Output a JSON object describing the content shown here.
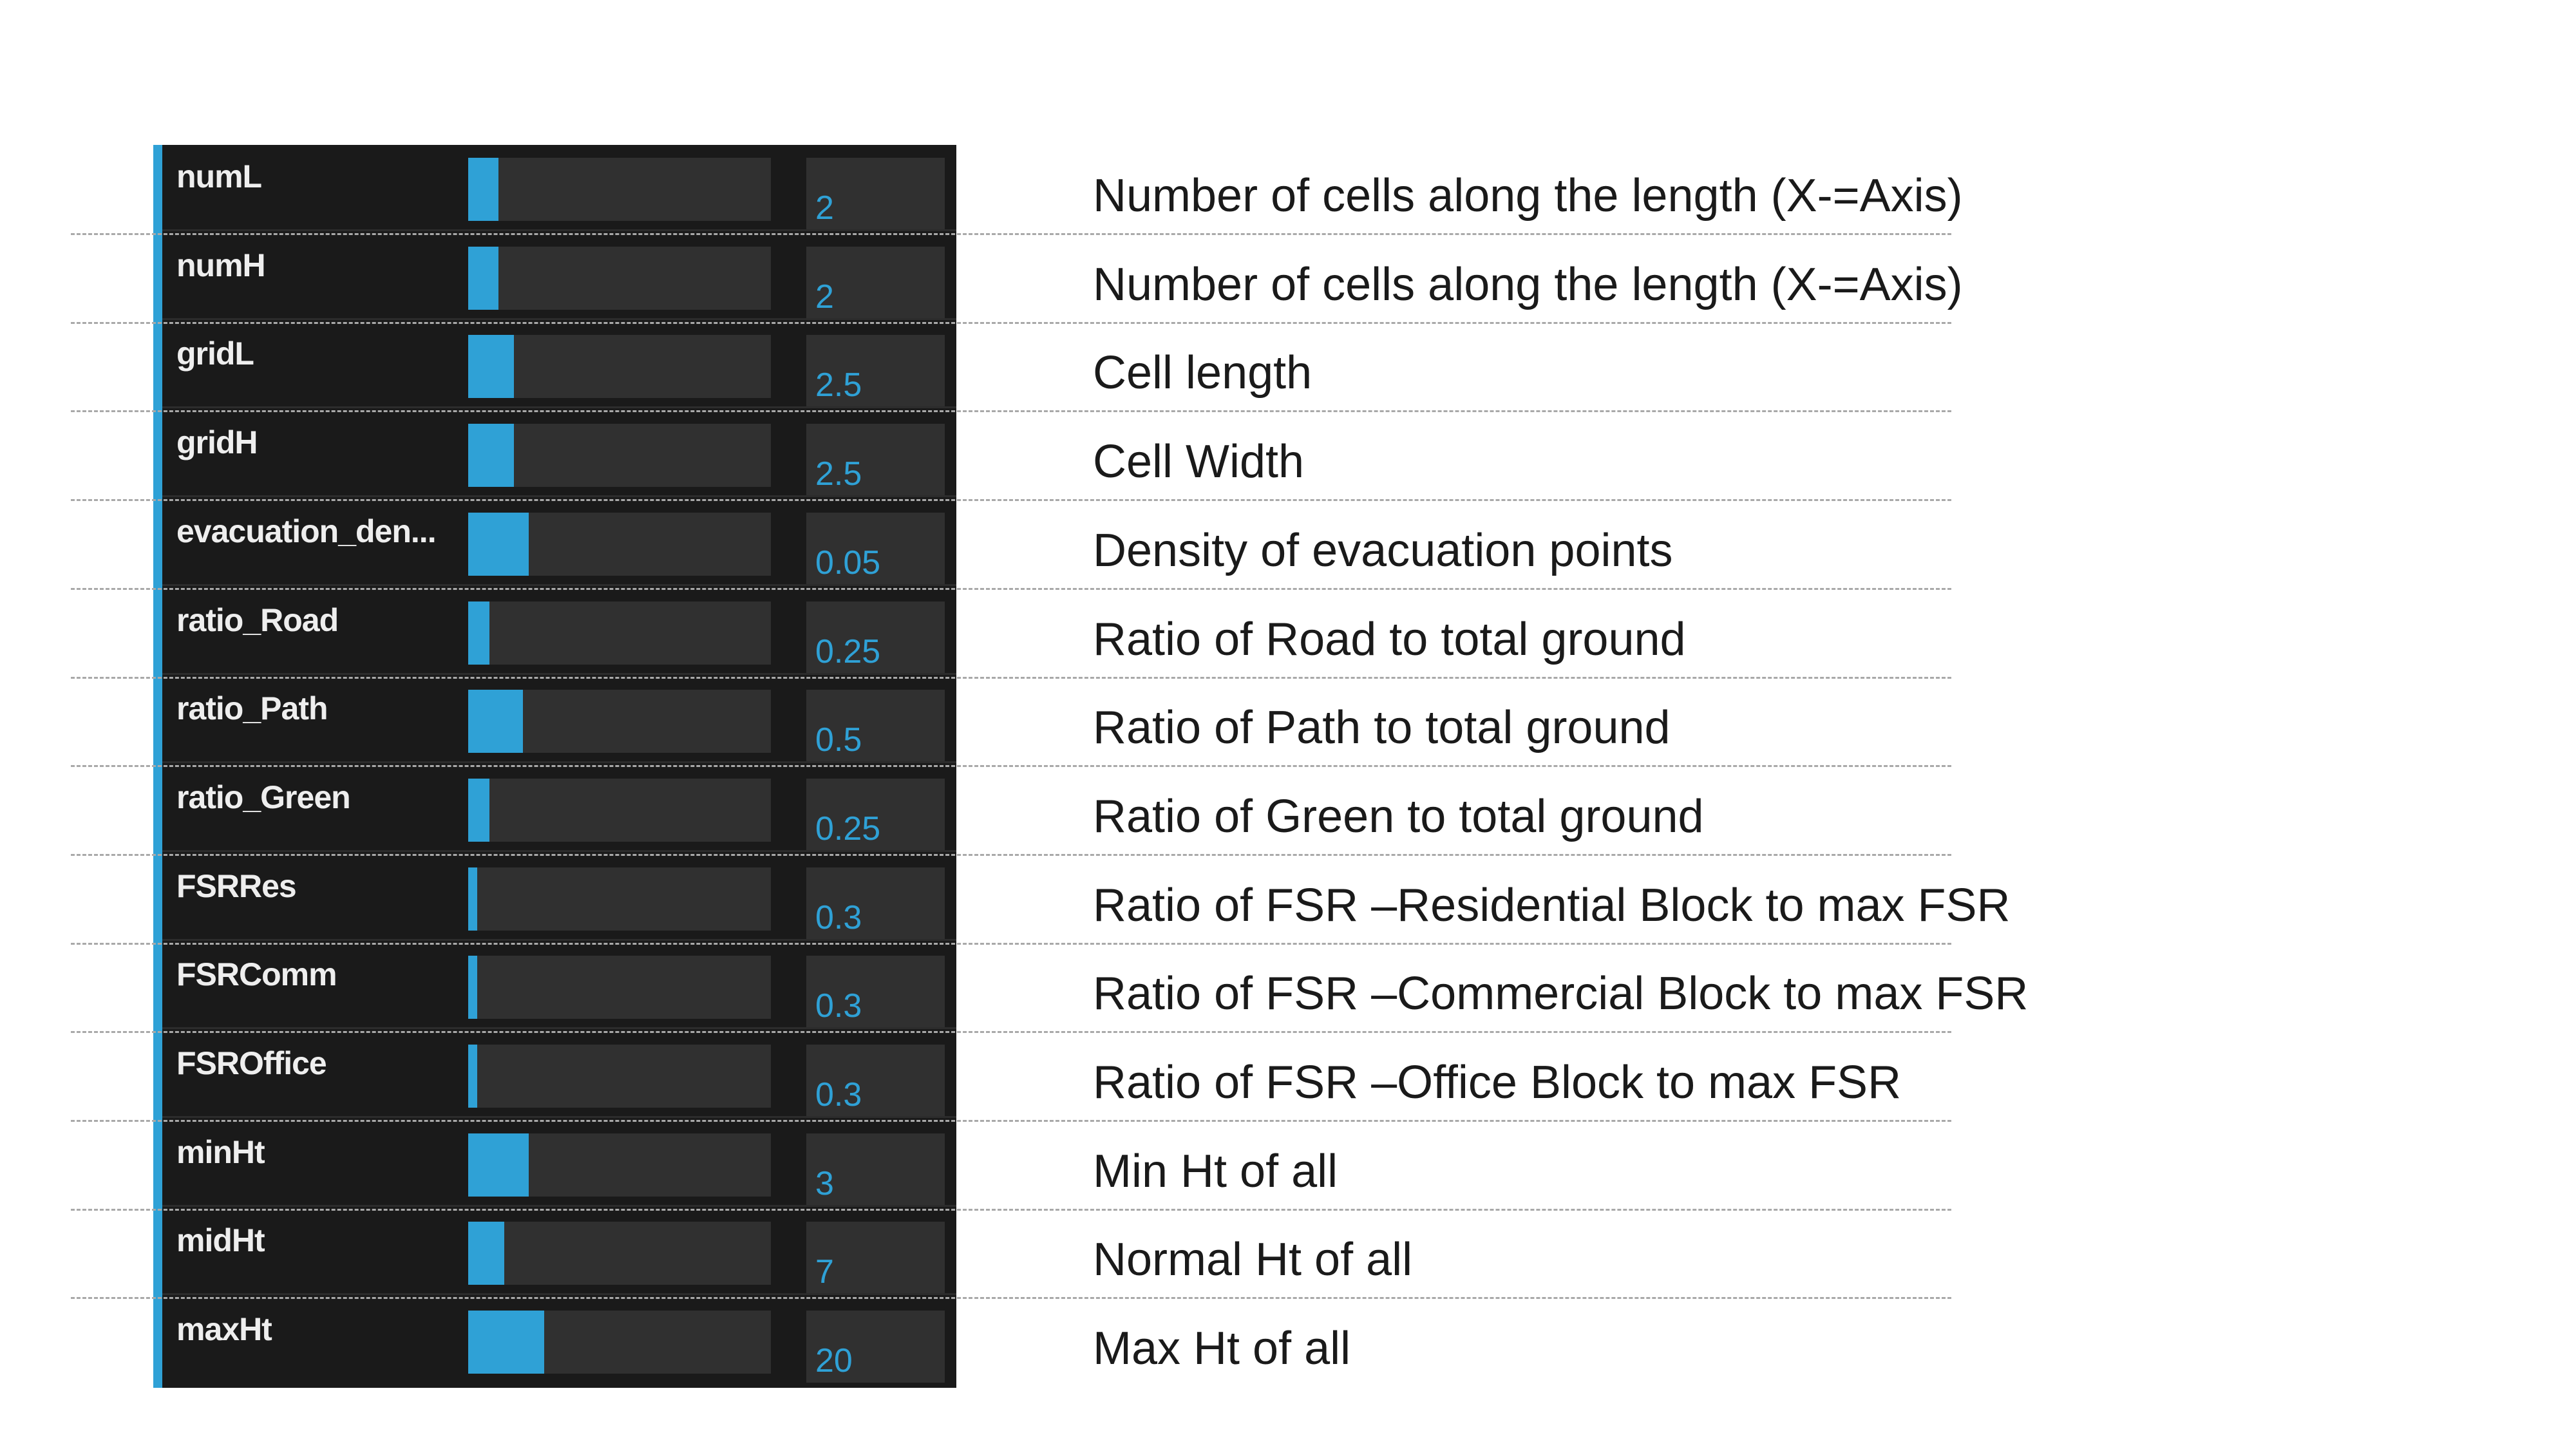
{
  "gui": {
    "accent_color": "#2fa1d6",
    "panel_color": "#1a1a1a",
    "params": [
      {
        "name": "numL",
        "value": "2",
        "fill": 0.1
      },
      {
        "name": "numH",
        "value": "2",
        "fill": 0.1
      },
      {
        "name": "gridL",
        "value": "2.5",
        "fill": 0.15
      },
      {
        "name": "gridH",
        "value": "2.5",
        "fill": 0.15
      },
      {
        "name": "evacuation_den...",
        "value": "0.05",
        "fill": 0.2
      },
      {
        "name": "ratio_Road",
        "value": "0.25",
        "fill": 0.07
      },
      {
        "name": "ratio_Path",
        "value": "0.5",
        "fill": 0.18
      },
      {
        "name": "ratio_Green",
        "value": "0.25",
        "fill": 0.07
      },
      {
        "name": "FSRRes",
        "value": "0.3",
        "fill": 0.03
      },
      {
        "name": "FSRComm",
        "value": "0.3",
        "fill": 0.03
      },
      {
        "name": "FSROffice",
        "value": "0.3",
        "fill": 0.03
      },
      {
        "name": "minHt",
        "value": "3",
        "fill": 0.2
      },
      {
        "name": "midHt",
        "value": "7",
        "fill": 0.12
      },
      {
        "name": "maxHt",
        "value": "20",
        "fill": 0.25
      }
    ]
  },
  "descriptions": [
    "Number of cells along the length (X-=Axis)",
    "Number of cells along the length (X-=Axis)",
    "Cell length",
    "Cell Width",
    "Density of evacuation points",
    "Ratio of Road to total ground",
    "Ratio of Path to total ground",
    "Ratio of Green to total ground",
    "Ratio of FSR –Residential Block to max FSR",
    "Ratio of FSR –Commercial Block to max FSR",
    "Ratio of FSR –Office Block to max FSR",
    "Min Ht of all",
    "Normal Ht of all",
    "Max Ht of all"
  ]
}
